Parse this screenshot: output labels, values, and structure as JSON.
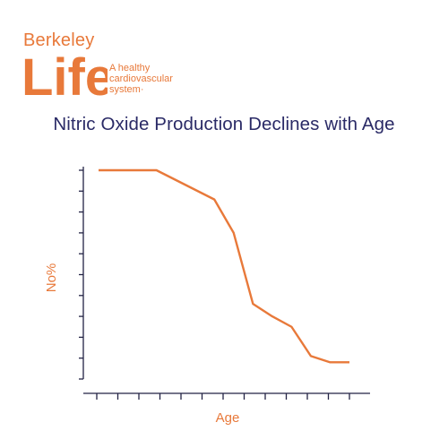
{
  "logo": {
    "brand_top": "Berkeley",
    "brand_main": "Life",
    "tagline_lines": [
      "A healthy",
      "cardiovascular",
      "system·"
    ]
  },
  "title": "Nitric Oxide Production Declines with Age",
  "colors": {
    "accent": "#e8793a",
    "title": "#2a2a66",
    "axis": "#222244"
  },
  "chart_data": {
    "type": "line",
    "title": "Nitric Oxide Production Declines with Age",
    "xlabel": "Age",
    "ylabel": "No%",
    "xlim": [
      0,
      13
    ],
    "ylim": [
      0,
      10
    ],
    "x_tick_count": 13,
    "y_tick_count": 10,
    "tick_labels_shown": false,
    "grid": false,
    "legend": "none",
    "series": [
      {
        "x": [
          0,
          3,
          6,
          7,
          8,
          9,
          10,
          11,
          12,
          13
        ],
        "y": [
          10,
          10,
          8.6,
          7.0,
          3.6,
          3.0,
          2.5,
          1.1,
          0.8,
          0.8
        ]
      }
    ]
  }
}
